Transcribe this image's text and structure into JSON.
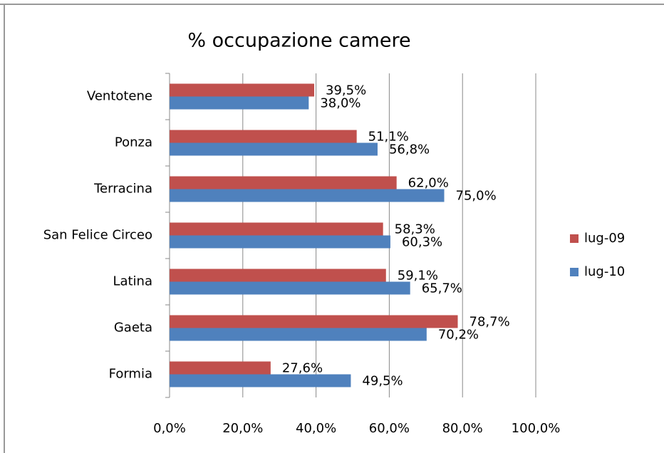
{
  "chart_data": {
    "type": "hbar",
    "title": "% occupazione camere",
    "categories": [
      "Formia",
      "Gaeta",
      "Latina",
      "San Felice Circeo",
      "Terracina",
      "Ponza",
      "Ventotene"
    ],
    "series": [
      {
        "name": "lug-09",
        "color": "#c0504d",
        "values": [
          27.6,
          78.7,
          59.1,
          58.3,
          62.0,
          51.1,
          39.5
        ],
        "value_labels": [
          "27,6%",
          "78,7%",
          "59,1%",
          "58,3%",
          "62,0%",
          "51,1%",
          "39,5%"
        ]
      },
      {
        "name": "lug-10",
        "color": "#4f81bd",
        "values": [
          49.5,
          70.2,
          65.7,
          60.3,
          75.0,
          56.8,
          38.0
        ],
        "value_labels": [
          "49,5%",
          "70,2%",
          "65,7%",
          "60,3%",
          "75,0%",
          "56,8%",
          "38,0%"
        ]
      }
    ],
    "xlim": [
      0,
      100
    ],
    "xticks": [
      {
        "value": 0,
        "label": "0,0%"
      },
      {
        "value": 20,
        "label": "20,0%"
      },
      {
        "value": 40,
        "label": "40,0%"
      },
      {
        "value": 60,
        "label": "60,0%"
      },
      {
        "value": 80,
        "label": "80,0%"
      },
      {
        "value": 100,
        "label": "100,0%"
      }
    ],
    "grid": true,
    "legend": "right"
  }
}
